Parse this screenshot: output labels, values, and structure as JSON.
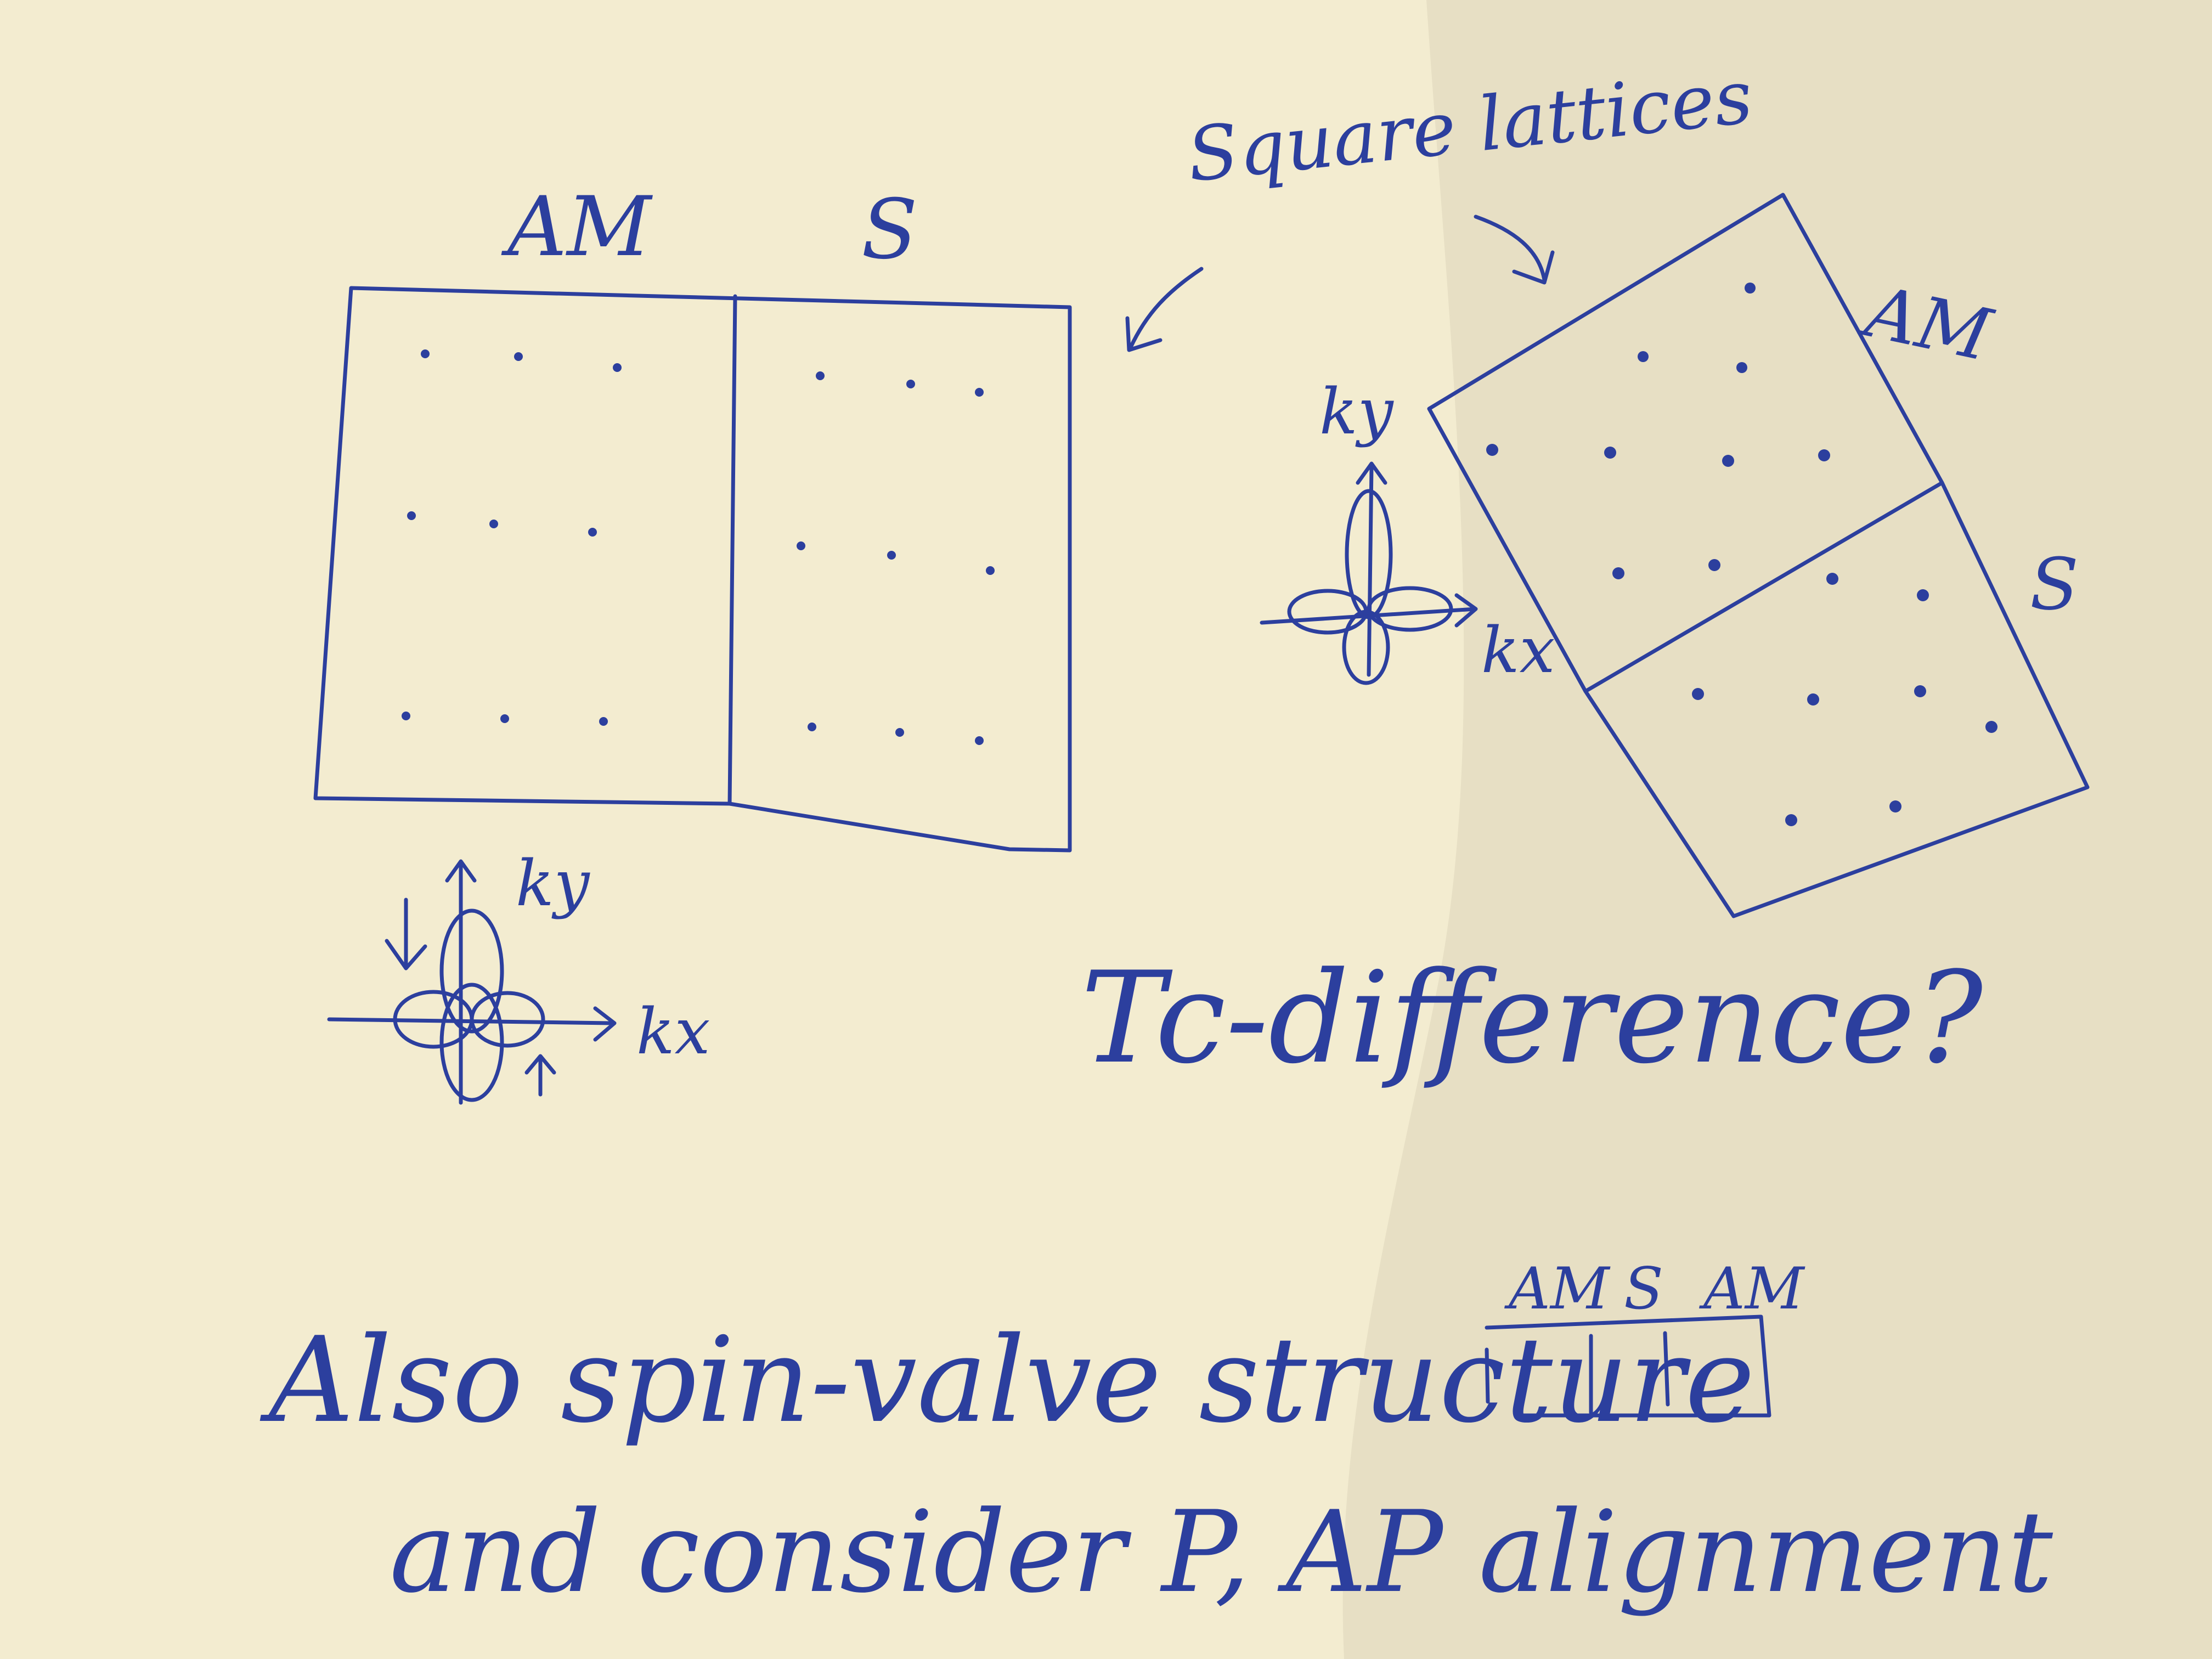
{
  "left_lattice": {
    "label_am": "AM",
    "label_s": "S",
    "axis_x": "kx",
    "axis_y": "ky"
  },
  "annotation": {
    "square_lattices": "Square lattices"
  },
  "right_lattice": {
    "label_am": "AM",
    "label_s": "S",
    "axis_x": "kx",
    "axis_y": "ky"
  },
  "question": {
    "text": "Tc-difference?"
  },
  "spin_valve": {
    "labels": [
      "AM",
      "S",
      "AM"
    ]
  },
  "note": {
    "line1": "Also spin-valve structure",
    "line2": "and consider P, AP alignment"
  },
  "colors": {
    "paper": "#f3ecd0",
    "ink": "#2c3f9e",
    "shadow": "#d8d2b6"
  }
}
